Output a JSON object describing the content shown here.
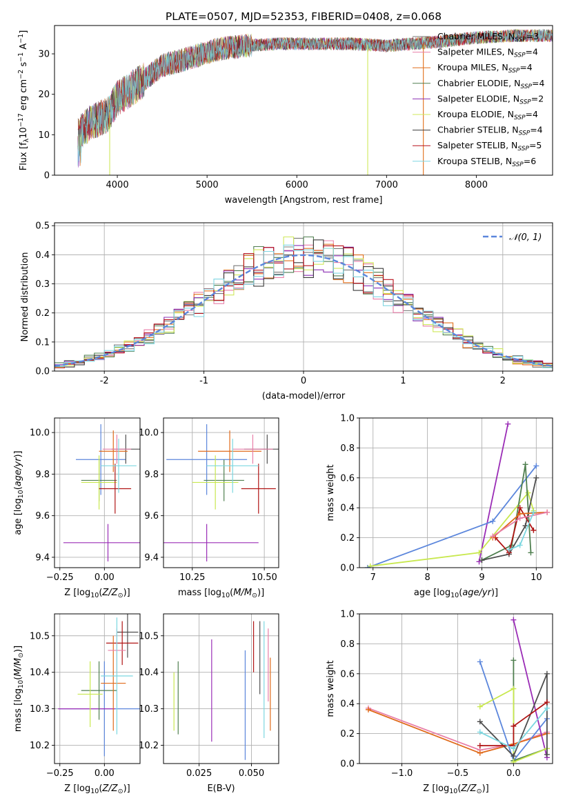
{
  "figure_title": "PLATE=0507, MJD=52353, FIBERID=0408, z=0.068",
  "colors": {
    "axes": "#000000",
    "grid": "#b0b0b0",
    "series": [
      "#787878",
      "#e87ea8",
      "#e06e1a",
      "#4e7d4e",
      "#8b2fb3",
      "#cfe85a",
      "#3a3a3a",
      "#b8101a",
      "#7fd6e2"
    ],
    "weights": {
      "blue": "#5b86dc",
      "purple": "#9a2cb6",
      "green": "#4f7f4f",
      "lime": "#c8e84e",
      "dark": "#4d4d4d",
      "red": "#b01313",
      "orange": "#e06a1a",
      "pink": "#e87ea8",
      "cyan": "#7bd7e0"
    }
  },
  "chart_data": [
    {
      "type": "line",
      "title": "PLATE=0507, MJD=52353, FIBERID=0408, z=0.068",
      "xlabel": "wavelength [Angstrom, rest frame]",
      "ylabel": "Flux [f_λ 10^-17 erg cm^-2 s^-1 A^-1]",
      "xlim": [
        3300,
        8850
      ],
      "ylim": [
        0,
        37
      ],
      "xticks": [
        4000,
        5000,
        6000,
        7000,
        8000
      ],
      "yticks": [
        0,
        10,
        20,
        30
      ],
      "grid": false,
      "legend_position": "upper-right",
      "series": [
        {
          "name": "Chabrier MILES, N_SSP=3",
          "label_main": "Chabrier MILES, N",
          "label_sub": "SSP",
          "label_tail": "=3"
        },
        {
          "name": "Salpeter MILES, N_SSP=4",
          "label_main": "Salpeter MILES, N",
          "label_sub": "SSP",
          "label_tail": "=4"
        },
        {
          "name": "Kroupa MILES, N_SSP=4",
          "label_main": "Kroupa MILES, N",
          "label_sub": "SSP",
          "label_tail": "=4"
        },
        {
          "name": "Chabrier ELODIE, N_SSP=4",
          "label_main": "Chabrier ELODIE, N",
          "label_sub": "SSP",
          "label_tail": "=4"
        },
        {
          "name": "Salpeter ELODIE, N_SSP=2",
          "label_main": "Salpeter ELODIE, N",
          "label_sub": "SSP",
          "label_tail": "=2"
        },
        {
          "name": "Kroupa ELODIE, N_SSP=4",
          "label_main": "Kroupa ELODIE, N",
          "label_sub": "SSP",
          "label_tail": "=4"
        },
        {
          "name": "Chabrier STELIB, N_SSP=4",
          "label_main": "Chabrier STELIB, N",
          "label_sub": "SSP",
          "label_tail": "=4"
        },
        {
          "name": "Salpeter STELIB, N_SSP=5",
          "label_main": "Salpeter STELIB, N",
          "label_sub": "SSP",
          "label_tail": "=5"
        },
        {
          "name": "Kroupa STELIB, N_SSP=6",
          "label_main": "Kroupa STELIB, N",
          "label_sub": "SSP",
          "label_tail": "=6"
        }
      ],
      "spectrum_anchors": {
        "x": [
          3560,
          3700,
          3900,
          4000,
          4200,
          4500,
          4800,
          5100,
          5400,
          5800,
          6200,
          6600,
          7000,
          7300,
          7600,
          8000,
          8400,
          8800
        ],
        "y": [
          10,
          13,
          15,
          19,
          22,
          27,
          29,
          31,
          32,
          32.5,
          32.5,
          32.5,
          32,
          32.5,
          33,
          34,
          34.5,
          34.5
        ]
      },
      "spikes": [
        {
          "x": 3915,
          "y": 0
        },
        {
          "x": 6790,
          "y": 0
        },
        {
          "x": 7410,
          "y": 0
        }
      ]
    },
    {
      "type": "histogram",
      "xlabel": "(data-model)/error",
      "ylabel": "Normed distribution",
      "xlim": [
        -2.5,
        2.5
      ],
      "ylim": [
        0,
        0.51
      ],
      "xticks": [
        -2,
        -1,
        0,
        1,
        2
      ],
      "yticks": [
        0.0,
        0.1,
        0.2,
        0.3,
        0.4,
        0.5
      ],
      "grid": true,
      "legend_position": "upper-right",
      "reference_curve": {
        "name": "𝒩(0, 1)",
        "style": "dashed",
        "color": "#5b86dc"
      },
      "bins": {
        "start": -2.5,
        "width": 0.1,
        "count": 50
      }
    },
    {
      "type": "scatter",
      "subtype": "errorbar",
      "xlabel": "Z [log10(Z/Z_sun)]",
      "ylabel": "age [log10(age/yr)]",
      "xlim": [
        -0.28,
        0.2
      ],
      "ylim": [
        9.35,
        10.07
      ],
      "xticks": [
        -0.25,
        0.0
      ],
      "xtick_labels": [
        "−0.25",
        "0.00"
      ],
      "yticks": [
        9.4,
        9.6,
        9.8,
        10.0
      ],
      "grid": true,
      "points": [
        {
          "color": "#5b86dc",
          "x": -0.02,
          "xerr": 0.14,
          "y": 9.87,
          "yerr": 0.17
        },
        {
          "color": "#9a2cb6",
          "x": 0.02,
          "xerr": 0.25,
          "y": 9.47,
          "yerr": 0.09
        },
        {
          "color": "#4f7f4f",
          "x": -0.03,
          "xerr": 0.1,
          "y": 9.77,
          "yerr": 0.1
        },
        {
          "color": "#c8e84e",
          "x": -0.03,
          "xerr": 0.1,
          "y": 9.76,
          "yerr": 0.13
        },
        {
          "color": "#4d4d4d",
          "x": 0.12,
          "xerr": 0.08,
          "y": 9.92,
          "yerr": 0.07
        },
        {
          "color": "#b01313",
          "x": 0.06,
          "xerr": 0.09,
          "y": 9.73,
          "yerr": 0.12
        },
        {
          "color": "#e06a1a",
          "x": 0.05,
          "xerr": 0.08,
          "y": 9.91,
          "yerr": 0.1
        },
        {
          "color": "#e87ea8",
          "x": 0.07,
          "xerr": 0.08,
          "y": 9.92,
          "yerr": 0.07
        },
        {
          "color": "#7bd7e0",
          "x": 0.08,
          "xerr": 0.1,
          "y": 9.84,
          "yerr": 0.13
        }
      ]
    },
    {
      "type": "scatter",
      "subtype": "errorbar",
      "xlabel": "mass [log10(M/M_sun)]",
      "ylabel": "",
      "xlim": [
        10.15,
        10.55
      ],
      "ylim": [
        9.35,
        10.07
      ],
      "xticks": [
        10.25,
        10.5
      ],
      "xtick_labels": [
        "10.25",
        "10.50"
      ],
      "yticks": [
        9.4,
        9.6,
        9.8,
        10.0
      ],
      "grid": true,
      "points": [
        {
          "color": "#5b86dc",
          "x": 10.3,
          "xerr": 0.14,
          "y": 9.87,
          "yerr": 0.17
        },
        {
          "color": "#9a2cb6",
          "x": 10.3,
          "xerr": 0.18,
          "y": 9.47,
          "yerr": 0.09
        },
        {
          "color": "#4f7f4f",
          "x": 10.36,
          "xerr": 0.07,
          "y": 9.77,
          "yerr": 0.1
        },
        {
          "color": "#c8e84e",
          "x": 10.33,
          "xerr": 0.08,
          "y": 9.76,
          "yerr": 0.13
        },
        {
          "color": "#4d4d4d",
          "x": 10.51,
          "xerr": 0.08,
          "y": 9.92,
          "yerr": 0.07
        },
        {
          "color": "#b01313",
          "x": 10.48,
          "xerr": 0.06,
          "y": 9.73,
          "yerr": 0.12
        },
        {
          "color": "#e06a1a",
          "x": 10.38,
          "xerr": 0.11,
          "y": 9.91,
          "yerr": 0.1
        },
        {
          "color": "#e87ea8",
          "x": 10.46,
          "xerr": 0.07,
          "y": 9.92,
          "yerr": 0.07
        },
        {
          "color": "#7bd7e0",
          "x": 10.39,
          "xerr": 0.09,
          "y": 9.84,
          "yerr": 0.13
        }
      ]
    },
    {
      "type": "line",
      "xlabel": "age [log10(age/yr)]",
      "ylabel": "mass weight",
      "xlim": [
        6.75,
        10.3
      ],
      "ylim": [
        0,
        1.0
      ],
      "xticks": [
        7,
        8,
        9,
        10
      ],
      "yticks": [
        0.0,
        0.2,
        0.4,
        0.6,
        0.8,
        1.0
      ],
      "grid": true,
      "series": [
        {
          "color": "#9a2cb6",
          "x": [
            8.95,
            9.48
          ],
          "y": [
            0.04,
            0.96
          ]
        },
        {
          "color": "#5b86dc",
          "x": [
            6.9,
            9.2,
            10.0
          ],
          "y": [
            0.0,
            0.31,
            0.68
          ]
        },
        {
          "color": "#c8e84e",
          "x": [
            6.95,
            8.95,
            9.85,
            9.95
          ],
          "y": [
            0.01,
            0.1,
            0.5,
            0.38
          ]
        },
        {
          "color": "#4f7f4f",
          "x": [
            9.0,
            9.55,
            9.8,
            9.9
          ],
          "y": [
            0.05,
            0.15,
            0.69,
            0.1
          ]
        },
        {
          "color": "#4d4d4d",
          "x": [
            9.0,
            9.5,
            9.8,
            10.0
          ],
          "y": [
            0.05,
            0.09,
            0.28,
            0.6
          ]
        },
        {
          "color": "#b01313",
          "x": [
            9.25,
            9.5,
            9.7,
            9.95
          ],
          "y": [
            0.2,
            0.1,
            0.4,
            0.25
          ]
        },
        {
          "color": "#e06a1a",
          "x": [
            9.2,
            9.7,
            10.2
          ],
          "y": [
            0.2,
            0.36,
            0.37
          ]
        },
        {
          "color": "#e87ea8",
          "x": [
            9.2,
            9.7,
            10.2
          ],
          "y": [
            0.21,
            0.33,
            0.37
          ]
        },
        {
          "color": "#7bd7e0",
          "x": [
            9.5,
            9.7,
            9.95
          ],
          "y": [
            0.12,
            0.15,
            0.37
          ]
        }
      ]
    },
    {
      "type": "scatter",
      "subtype": "errorbar",
      "xlabel": "Z [log10(Z/Z_sun)]",
      "ylabel": "mass [log10(M/M_sun)]",
      "xlim": [
        -0.28,
        0.2
      ],
      "ylim": [
        10.15,
        10.56
      ],
      "xticks": [
        -0.25,
        0.0
      ],
      "xtick_labels": [
        "−0.25",
        "0.00"
      ],
      "yticks": [
        10.2,
        10.3,
        10.4,
        10.5
      ],
      "grid": true,
      "points": [
        {
          "color": "#5b86dc",
          "x": 0.0,
          "xerr": 0.25,
          "y": 10.3,
          "yerr": 0.13
        },
        {
          "color": "#9a2cb6",
          "x": -0.1,
          "xerr": 0.16,
          "y": 10.3,
          "yerr": 0.0
        },
        {
          "color": "#4f7f4f",
          "x": -0.03,
          "xerr": 0.1,
          "y": 10.35,
          "yerr": 0.08
        },
        {
          "color": "#c8e84e",
          "x": -0.08,
          "xerr": 0.07,
          "y": 10.34,
          "yerr": 0.09
        },
        {
          "color": "#4d4d4d",
          "x": 0.13,
          "xerr": 0.06,
          "y": 10.51,
          "yerr": 0.07
        },
        {
          "color": "#b01313",
          "x": 0.1,
          "xerr": 0.09,
          "y": 10.48,
          "yerr": 0.06
        },
        {
          "color": "#e06a1a",
          "x": 0.05,
          "xerr": 0.07,
          "y": 10.37,
          "yerr": 0.13
        },
        {
          "color": "#e87ea8",
          "x": 0.07,
          "xerr": 0.05,
          "y": 10.46,
          "yerr": 0.06
        },
        {
          "color": "#7bd7e0",
          "x": 0.07,
          "xerr": 0.09,
          "y": 10.39,
          "yerr": 0.16
        }
      ]
    },
    {
      "type": "scatter",
      "subtype": "errorbar",
      "xlabel": "E(B-V)",
      "ylabel": "",
      "xlim": [
        0.008,
        0.063
      ],
      "ylim": [
        10.15,
        10.56
      ],
      "xticks": [
        0.025,
        0.05
      ],
      "xtick_labels": [
        "0.025",
        "0.050"
      ],
      "yticks": [
        10.2,
        10.3,
        10.4,
        10.5
      ],
      "grid": true,
      "points": [
        {
          "color": "#c8e84e",
          "x": 0.013,
          "y": 10.32,
          "yerr": 0.08
        },
        {
          "color": "#4f7f4f",
          "x": 0.015,
          "y": 10.33,
          "yerr": 0.1
        },
        {
          "color": "#9a2cb6",
          "x": 0.031,
          "y": 10.35,
          "yerr": 0.14
        },
        {
          "color": "#5b86dc",
          "x": 0.047,
          "y": 10.31,
          "yerr": 0.15
        },
        {
          "color": "#b01313",
          "x": 0.051,
          "y": 10.47,
          "yerr": 0.07
        },
        {
          "color": "#4d4d4d",
          "x": 0.054,
          "y": 10.44,
          "yerr": 0.1
        },
        {
          "color": "#7bd7e0",
          "x": 0.056,
          "y": 10.38,
          "yerr": 0.16
        },
        {
          "color": "#e87ea8",
          "x": 0.058,
          "y": 10.42,
          "yerr": 0.1
        },
        {
          "color": "#e06a1a",
          "x": 0.059,
          "y": 10.34,
          "yerr": 0.1
        }
      ]
    },
    {
      "type": "line",
      "xlabel": "Z [log10(Z/Z_sun)]",
      "ylabel": "mass weight",
      "xlim": [
        -1.38,
        0.35
      ],
      "ylim": [
        0,
        1.0
      ],
      "xticks": [
        -1.0,
        -0.5,
        0.0
      ],
      "xtick_labels": [
        "−1.0",
        "−0.5",
        "0.0"
      ],
      "yticks": [
        0.0,
        0.2,
        0.4,
        0.6,
        0.8,
        1.0
      ],
      "grid": true,
      "series": [
        {
          "color": "#e87ea8",
          "x": [
            -1.3,
            -0.3,
            0.0,
            0.3
          ],
          "y": [
            0.37,
            0.09,
            0.13,
            0.21
          ]
        },
        {
          "color": "#e06a1a",
          "x": [
            -1.3,
            -0.3,
            0.0,
            0.3
          ],
          "y": [
            0.36,
            0.07,
            0.13,
            0.2
          ]
        },
        {
          "color": "#5b86dc",
          "x": [
            -0.3,
            0.0,
            0.3
          ],
          "y": [
            0.68,
            0.02,
            0.3
          ]
        },
        {
          "color": "#9a2cb6",
          "x": [
            0.0,
            0.3
          ],
          "y": [
            0.96,
            0.04
          ]
        },
        {
          "color": "#4f7f4f",
          "x": [
            0.0,
            0.0,
            0.3
          ],
          "y": [
            0.69,
            0.02,
            0.1
          ]
        },
        {
          "color": "#c8e84e",
          "x": [
            -0.3,
            0.0,
            0.0,
            0.3
          ],
          "y": [
            0.38,
            0.5,
            0.01,
            0.1
          ]
        },
        {
          "color": "#4d4d4d",
          "x": [
            -0.3,
            0.0,
            0.3,
            0.3
          ],
          "y": [
            0.28,
            0.05,
            0.6,
            0.06
          ]
        },
        {
          "color": "#b01313",
          "x": [
            -0.3,
            0.0,
            0.0,
            0.3
          ],
          "y": [
            0.12,
            0.12,
            0.25,
            0.41
          ]
        },
        {
          "color": "#7bd7e0",
          "x": [
            -0.3,
            0.0,
            0.3
          ],
          "y": [
            0.21,
            0.1,
            0.37
          ]
        }
      ]
    }
  ]
}
